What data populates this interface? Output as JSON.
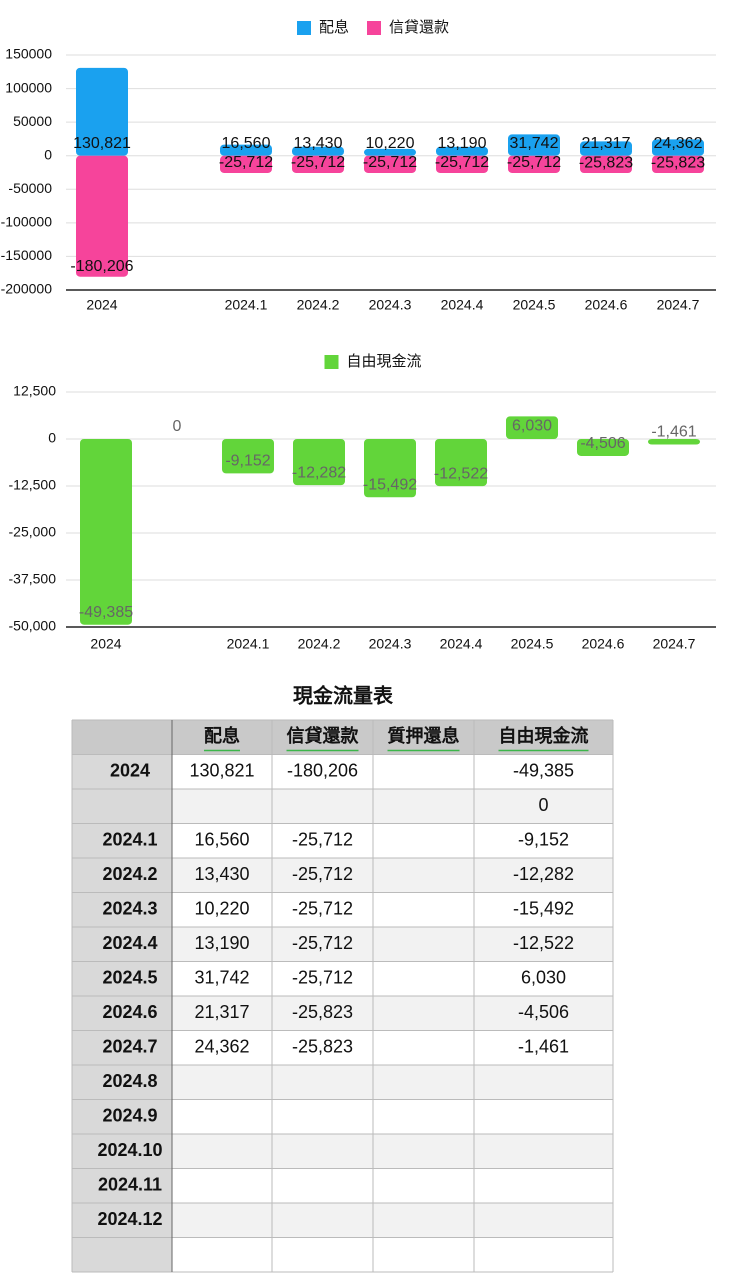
{
  "chart_data": [
    {
      "type": "bar",
      "legend": "top",
      "categories": [
        "2024",
        null,
        "2024.1",
        "2024.2",
        "2024.3",
        "2024.4",
        "2024.5",
        "2024.6",
        "2024.7"
      ],
      "series": [
        {
          "name": "配息",
          "color": "#1aa1ef",
          "values": [
            130821,
            null,
            16560,
            13430,
            10220,
            13190,
            31742,
            21317,
            24362
          ],
          "value_labels": [
            "130,821",
            null,
            "16,560",
            "13,430",
            "10,220",
            "13,190",
            "31,742",
            "21,317",
            "24,362"
          ]
        },
        {
          "name": "信貸還款",
          "color": "#f6449b",
          "values": [
            -180206,
            null,
            -25712,
            -25712,
            -25712,
            -25712,
            -25712,
            -25823,
            -25823
          ],
          "value_labels": [
            "-180,206",
            null,
            "-25,712",
            "-25,712",
            "-25,712",
            "-25,712",
            "-25,712",
            "-25,823",
            "-25,823"
          ]
        }
      ],
      "ylim": [
        -200000,
        150000
      ],
      "yticks": [
        -200000,
        -150000,
        -100000,
        -50000,
        0,
        50000,
        100000,
        150000
      ],
      "grid": true
    },
    {
      "type": "bar",
      "legend": "top",
      "categories": [
        "2024",
        null,
        "2024.1",
        "2024.2",
        "2024.3",
        "2024.4",
        "2024.5",
        "2024.6",
        "2024.7"
      ],
      "series": [
        {
          "name": "自由現金流",
          "color": "#62d53a",
          "values": [
            -49385,
            0,
            -9152,
            -12282,
            -15492,
            -12522,
            6030,
            -4506,
            -1461
          ],
          "value_labels": [
            "-49,385",
            "0",
            "-9,152",
            "-12,282",
            "-15,492",
            "-12,522",
            "6,030",
            "-4,506",
            "-1,461"
          ]
        }
      ],
      "ylim": [
        -50000,
        12500
      ],
      "yticks": [
        {
          "value": -50000,
          "label": "-50,000"
        },
        {
          "value": -37500,
          "label": "-37,500"
        },
        {
          "value": -25000,
          "label": "-25,000"
        },
        {
          "value": -12500,
          "label": "-12,500"
        },
        0,
        {
          "value": 12500,
          "label": "12,500"
        }
      ],
      "grid": true
    }
  ],
  "table": {
    "title": "現金流量表",
    "columns": [
      "配息",
      "信貸還款",
      "質押還息",
      "自由現金流"
    ],
    "rows": [
      {
        "label": "2024",
        "cells": [
          "130,821",
          "-180,206",
          null,
          "-49,385"
        ]
      },
      {
        "label": null,
        "cells": [
          null,
          null,
          null,
          "0"
        ]
      },
      {
        "label": "2024.1",
        "cells": [
          "16,560",
          "-25,712",
          null,
          "-9,152"
        ]
      },
      {
        "label": "2024.2",
        "cells": [
          "13,430",
          "-25,712",
          null,
          "-12,282"
        ]
      },
      {
        "label": "2024.3",
        "cells": [
          "10,220",
          "-25,712",
          null,
          "-15,492"
        ]
      },
      {
        "label": "2024.4",
        "cells": [
          "13,190",
          "-25,712",
          null,
          "-12,522"
        ]
      },
      {
        "label": "2024.5",
        "cells": [
          "31,742",
          "-25,712",
          null,
          "6,030"
        ]
      },
      {
        "label": "2024.6",
        "cells": [
          "21,317",
          "-25,823",
          null,
          "-4,506"
        ]
      },
      {
        "label": "2024.7",
        "cells": [
          "24,362",
          "-25,823",
          null,
          "-1,461"
        ]
      },
      {
        "label": "2024.8",
        "cells": [
          null,
          null,
          null,
          null
        ]
      },
      {
        "label": "2024.9",
        "cells": [
          null,
          null,
          null,
          null
        ]
      },
      {
        "label": "2024.10",
        "cells": [
          null,
          null,
          null,
          null
        ]
      },
      {
        "label": "2024.11",
        "cells": [
          null,
          null,
          null,
          null
        ]
      },
      {
        "label": "2024.12",
        "cells": [
          null,
          null,
          null,
          null
        ]
      },
      {
        "label": null,
        "cells": [
          null,
          null,
          null,
          null
        ]
      }
    ]
  }
}
